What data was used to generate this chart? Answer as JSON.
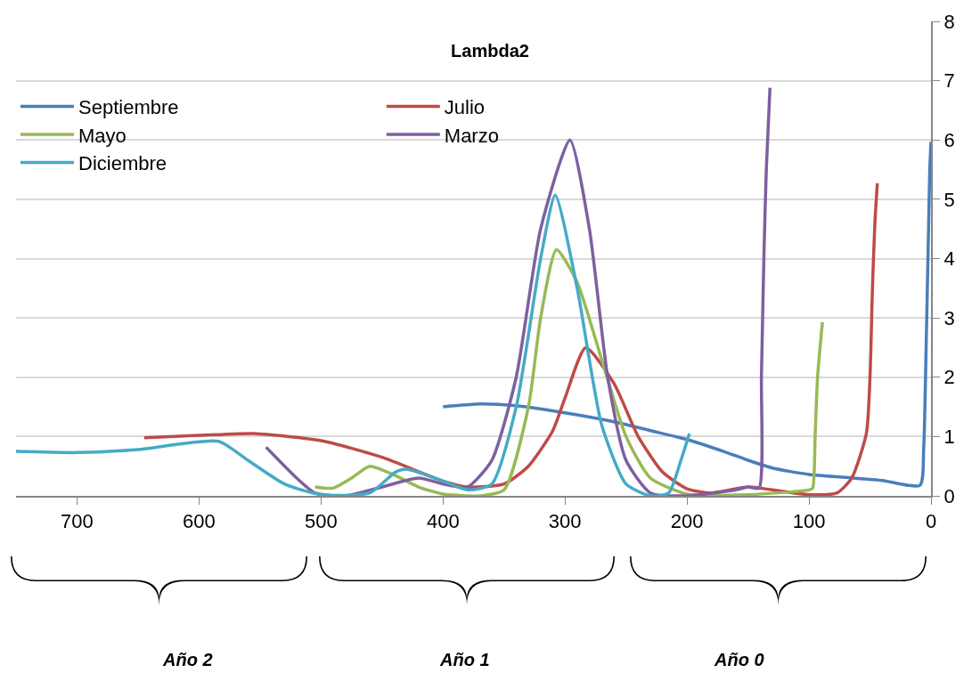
{
  "chart_data": {
    "type": "line",
    "title": "Lambda2",
    "xlim": [
      750,
      0
    ],
    "xticks": [
      700,
      600,
      500,
      400,
      300,
      200,
      100,
      0
    ],
    "ylim": [
      0,
      8
    ],
    "yticks": [
      0,
      1,
      2,
      3,
      4,
      5,
      6,
      7,
      8
    ],
    "grid": "y",
    "legend": "top left",
    "marker": "none",
    "line_style": "solid",
    "annotations": [
      "Año 2",
      "Año 1",
      "Año 0"
    ],
    "series": [
      {
        "name": "Septiembre",
        "color": "#4a7ebb",
        "x": [
          400,
          370,
          340,
          300,
          260,
          230,
          200,
          170,
          150,
          130,
          100,
          70,
          40,
          9,
          6,
          4,
          2,
          1,
          0
        ],
        "values": [
          1.5,
          1.55,
          1.52,
          1.4,
          1.25,
          1.1,
          0.95,
          0.75,
          0.6,
          0.47,
          0.36,
          0.31,
          0.26,
          0.18,
          0.8,
          2.5,
          4.5,
          5.5,
          5.97
        ]
      },
      {
        "name": "Julio",
        "color": "#be4b48",
        "x": [
          645,
          600,
          555,
          500,
          450,
          400,
          380,
          350,
          330,
          310,
          300,
          283,
          260,
          240,
          220,
          200,
          180,
          150,
          130,
          100,
          77,
          65,
          53,
          50,
          48,
          46,
          44
        ],
        "values": [
          0.98,
          1.02,
          1.05,
          0.93,
          0.65,
          0.25,
          0.15,
          0.2,
          0.5,
          1.1,
          1.65,
          2.5,
          1.9,
          1.0,
          0.4,
          0.12,
          0.05,
          0.15,
          0.1,
          0.02,
          0.05,
          0.3,
          1.05,
          2.0,
          3.5,
          4.6,
          5.27
        ]
      },
      {
        "name": "Mayo",
        "color": "#98b954",
        "x": [
          505,
          490,
          475,
          460,
          440,
          420,
          400,
          370,
          350,
          330,
          320,
          307,
          290,
          270,
          250,
          230,
          200,
          150,
          100,
          97,
          95,
          93,
          89
        ],
        "values": [
          0.15,
          0.13,
          0.3,
          0.5,
          0.35,
          0.15,
          0.03,
          0.0,
          0.1,
          1.5,
          3.0,
          4.15,
          3.6,
          2.3,
          1.0,
          0.3,
          0.03,
          0.02,
          0.1,
          0.13,
          1.0,
          2.0,
          2.93
        ]
      },
      {
        "name": "Marzo",
        "color": "#7d60a0",
        "x": [
          545,
          520,
          505,
          480,
          450,
          420,
          400,
          380,
          360,
          340,
          320,
          296,
          280,
          265,
          250,
          230,
          200,
          160,
          150,
          141,
          139,
          137,
          135,
          132
        ],
        "values": [
          0.82,
          0.3,
          0.05,
          0.0,
          0.15,
          0.3,
          0.2,
          0.15,
          0.6,
          2.0,
          4.5,
          6.0,
          4.5,
          2.0,
          0.6,
          0.05,
          0.0,
          0.1,
          0.15,
          0.13,
          2.0,
          4.0,
          5.5,
          6.88
        ]
      },
      {
        "name": "Diciembre",
        "color": "#46aac5",
        "x": [
          750,
          700,
          650,
          584,
          560,
          530,
          500,
          460,
          439,
          430,
          400,
          380,
          360,
          340,
          320,
          308,
          290,
          270,
          250,
          230,
          215,
          205,
          198
        ],
        "values": [
          0.75,
          0.73,
          0.78,
          0.92,
          0.6,
          0.2,
          0.02,
          0.05,
          0.4,
          0.45,
          0.25,
          0.1,
          0.2,
          1.5,
          4.0,
          5.07,
          3.5,
          1.2,
          0.2,
          0.0,
          0.05,
          0.6,
          1.05
        ]
      }
    ]
  }
}
